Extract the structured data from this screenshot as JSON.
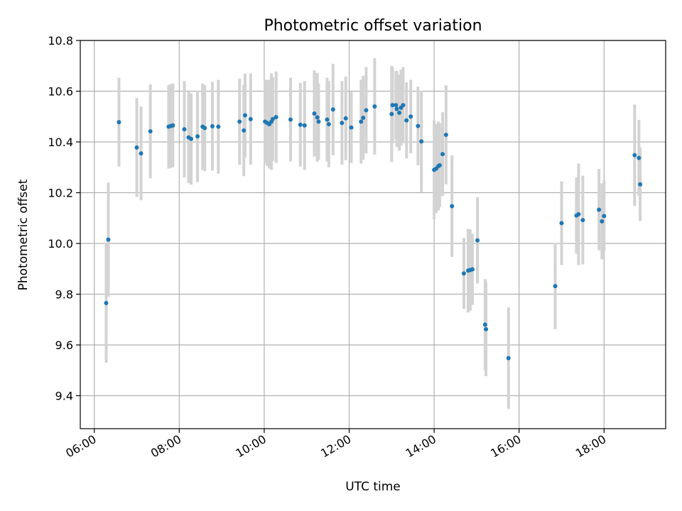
{
  "chart_data": {
    "type": "scatter",
    "title": "Photometric offset variation",
    "xlabel": "UTC time",
    "ylabel": "Photometric offset",
    "x_unit": "hour",
    "xlim": [
      5.67,
      19.45
    ],
    "ylim": [
      9.27,
      10.8
    ],
    "xticks": [
      6,
      8,
      10,
      12,
      14,
      16,
      18
    ],
    "xtick_labels": [
      "06:00",
      "08:00",
      "10:00",
      "12:00",
      "14:00",
      "16:00",
      "18:00"
    ],
    "yticks": [
      9.4,
      9.6,
      9.8,
      10.0,
      10.2,
      10.4,
      10.6,
      10.8
    ],
    "ytick_labels": [
      "9.4",
      "9.6",
      "9.8",
      "10.0",
      "10.2",
      "10.4",
      "10.6",
      "10.8"
    ],
    "grid": true,
    "colors": {
      "point": "#1f77b4",
      "errorbar": "#d3d3d3"
    },
    "points": [
      [
        6.28,
        9.765,
        0.235
      ],
      [
        6.33,
        10.015,
        0.225
      ],
      [
        6.58,
        10.478,
        0.175
      ],
      [
        7.0,
        10.378,
        0.195
      ],
      [
        7.1,
        10.355,
        0.185
      ],
      [
        7.32,
        10.442,
        0.185
      ],
      [
        7.75,
        10.46,
        0.165
      ],
      [
        7.8,
        10.463,
        0.165
      ],
      [
        7.85,
        10.465,
        0.165
      ],
      [
        8.12,
        10.45,
        0.19
      ],
      [
        8.22,
        10.418,
        0.18
      ],
      [
        8.28,
        10.412,
        0.18
      ],
      [
        8.43,
        10.422,
        0.18
      ],
      [
        8.55,
        10.46,
        0.17
      ],
      [
        8.6,
        10.455,
        0.17
      ],
      [
        8.78,
        10.462,
        0.175
      ],
      [
        8.92,
        10.46,
        0.185
      ],
      [
        9.42,
        10.48,
        0.17
      ],
      [
        9.52,
        10.445,
        0.18
      ],
      [
        9.55,
        10.505,
        0.165
      ],
      [
        9.68,
        10.49,
        0.18
      ],
      [
        10.02,
        10.48,
        0.165
      ],
      [
        10.07,
        10.475,
        0.17
      ],
      [
        10.12,
        10.47,
        0.175
      ],
      [
        10.17,
        10.48,
        0.19
      ],
      [
        10.2,
        10.49,
        0.165
      ],
      [
        10.28,
        10.498,
        0.18
      ],
      [
        10.62,
        10.488,
        0.165
      ],
      [
        10.85,
        10.468,
        0.165
      ],
      [
        10.95,
        10.465,
        0.175
      ],
      [
        11.18,
        10.512,
        0.17
      ],
      [
        11.25,
        10.497,
        0.175
      ],
      [
        11.28,
        10.48,
        0.15
      ],
      [
        11.48,
        10.488,
        0.165
      ],
      [
        11.52,
        10.47,
        0.17
      ],
      [
        11.62,
        10.528,
        0.18
      ],
      [
        11.83,
        10.475,
        0.165
      ],
      [
        11.92,
        10.493,
        0.165
      ],
      [
        12.05,
        10.457,
        0.14
      ],
      [
        12.28,
        10.48,
        0.165
      ],
      [
        12.33,
        10.495,
        0.165
      ],
      [
        12.4,
        10.525,
        0.17
      ],
      [
        12.6,
        10.54,
        0.19
      ],
      [
        13.0,
        10.51,
        0.19
      ],
      [
        13.02,
        10.545,
        0.15
      ],
      [
        13.1,
        10.545,
        0.135
      ],
      [
        13.12,
        10.53,
        0.15
      ],
      [
        13.18,
        10.515,
        0.15
      ],
      [
        13.22,
        10.535,
        0.15
      ],
      [
        13.27,
        10.545,
        0.15
      ],
      [
        13.35,
        10.485,
        0.15
      ],
      [
        13.45,
        10.5,
        0.145
      ],
      [
        13.62,
        10.463,
        0.155
      ],
      [
        13.7,
        10.402,
        0.2
      ],
      [
        14.0,
        10.29,
        0.195
      ],
      [
        14.05,
        10.295,
        0.175
      ],
      [
        14.1,
        10.305,
        0.175
      ],
      [
        14.13,
        10.308,
        0.165
      ],
      [
        14.2,
        10.352,
        0.165
      ],
      [
        14.28,
        10.428,
        0.195
      ],
      [
        14.42,
        10.147,
        0.2
      ],
      [
        14.7,
        9.882,
        0.14
      ],
      [
        14.8,
        9.893,
        0.165
      ],
      [
        14.85,
        9.895,
        0.16
      ],
      [
        14.9,
        9.898,
        0.14
      ],
      [
        15.02,
        10.012,
        0.17
      ],
      [
        15.2,
        9.68,
        0.18
      ],
      [
        15.22,
        9.662,
        0.185
      ],
      [
        15.75,
        9.548,
        0.2
      ],
      [
        16.85,
        9.832,
        0.17
      ],
      [
        17.0,
        10.08,
        0.165
      ],
      [
        17.35,
        10.11,
        0.15
      ],
      [
        17.4,
        10.115,
        0.2
      ],
      [
        17.5,
        10.092,
        0.175
      ],
      [
        17.88,
        10.133,
        0.16
      ],
      [
        17.95,
        10.087,
        0.15
      ],
      [
        18.0,
        10.108,
        0.14
      ],
      [
        18.72,
        10.348,
        0.2
      ],
      [
        18.82,
        10.337,
        0.15
      ],
      [
        18.85,
        10.233,
        0.145
      ]
    ]
  }
}
